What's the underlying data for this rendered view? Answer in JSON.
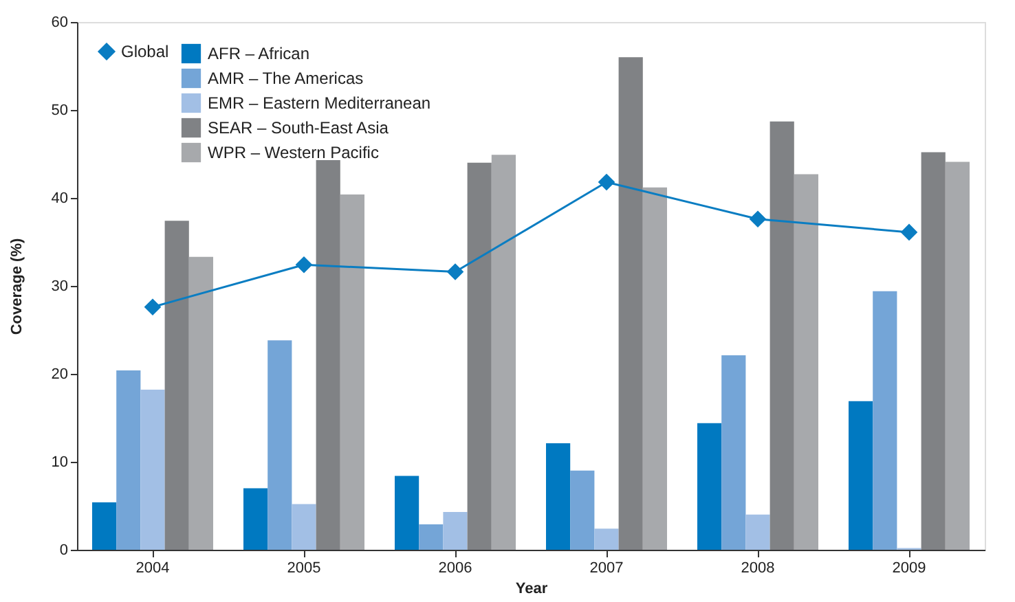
{
  "chart_data": {
    "type": "bar",
    "xlabel": "Year",
    "ylabel": "Coverage (%)",
    "categories": [
      "2004",
      "2005",
      "2006",
      "2007",
      "2008",
      "2009"
    ],
    "series": [
      {
        "name": "AFR – African",
        "color": "#0079c1",
        "values": [
          5.4,
          7.0,
          8.4,
          12.1,
          14.4,
          16.9
        ]
      },
      {
        "name": "AMR – The Americas",
        "color": "#74a5d7",
        "values": [
          20.4,
          23.8,
          2.9,
          9.0,
          22.1,
          29.4
        ]
      },
      {
        "name": "EMR – Eastern Mediterranean",
        "color": "#a2bfe5",
        "values": [
          18.2,
          5.2,
          4.3,
          2.4,
          4.0,
          0.2
        ]
      },
      {
        "name": "SEAR – South-East Asia",
        "color": "#808285",
        "values": [
          37.4,
          44.3,
          44.0,
          56.0,
          48.7,
          45.2
        ]
      },
      {
        "name": "WPR – Western Pacific",
        "color": "#a7a9ac",
        "values": [
          33.3,
          40.4,
          44.9,
          41.2,
          42.7,
          44.1
        ]
      },
      {
        "name": "Global",
        "color": "#0a7dc2",
        "type": "line",
        "marker": "diamond",
        "values": [
          27.6,
          32.4,
          31.6,
          41.8,
          37.6,
          36.1
        ]
      }
    ],
    "ylim": [
      0,
      60
    ],
    "yticks": [
      0,
      10,
      20,
      30,
      40,
      50,
      60
    ],
    "grid": false,
    "legend": "top left"
  }
}
